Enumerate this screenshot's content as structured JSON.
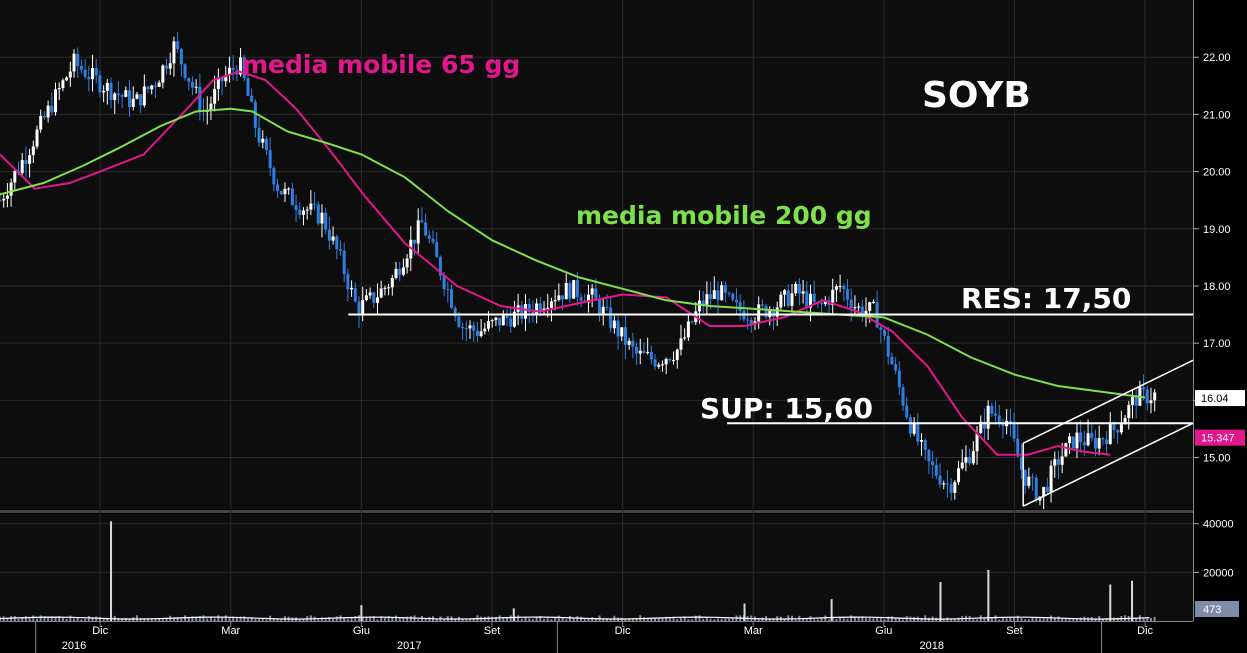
{
  "chart_data": {
    "type": "candlestick",
    "ticker": "SOYB",
    "colors": {
      "background": "#0d0d0d",
      "up_candle": "#ffffff",
      "down_candle": "#2f7fe0",
      "ma65": "#e2178c",
      "ma200": "#7ee04a",
      "level_line": "#ffffff",
      "channel": "#ffffff",
      "volume": "#d9d9d9",
      "axis_text": "#ffffff"
    },
    "price_axis": {
      "ylim": [
        14.1,
        23.0
      ],
      "ticks": [
        "15.00",
        "16.00",
        "17.00",
        "18.00",
        "19.00",
        "20.00",
        "21.00",
        "22.00"
      ],
      "tick_values": [
        15,
        16,
        17,
        18,
        19,
        20,
        21,
        22
      ]
    },
    "volume_axis": {
      "ylim": [
        0,
        44000
      ],
      "ticks": [
        "20000",
        "40000"
      ],
      "tick_values": [
        20000,
        40000
      ]
    },
    "x_axis": {
      "months": [
        {
          "label": "Dic",
          "x": 2
        },
        {
          "label": "Mar",
          "x": 5
        },
        {
          "label": "Giu",
          "x": 8
        },
        {
          "label": "Set",
          "x": 11
        },
        {
          "label": "Dic",
          "x": 14
        },
        {
          "label": "Mar",
          "x": 17
        },
        {
          "label": "Giu",
          "x": 20
        },
        {
          "label": "Set",
          "x": 23
        },
        {
          "label": "Dic",
          "x": 26
        }
      ],
      "years": [
        {
          "label": "2016",
          "x": 1.4
        },
        {
          "label": "2017",
          "x": 9.1
        },
        {
          "label": "2018",
          "x": 21.1
        }
      ],
      "xlim": [
        -0.3,
        27.1
      ],
      "x_unit": "months since Nov 2016"
    },
    "series": [
      {
        "name": "media mobile 65 gg",
        "x": [
          -0.3,
          0.5,
          1.3,
          2.0,
          3.0,
          4.0,
          4.6,
          5.2,
          5.8,
          6.5,
          7.3,
          8.1,
          9.0,
          10.2,
          11.2,
          12.1,
          13.0,
          14.0,
          15.0,
          16.0,
          16.8,
          17.7,
          18.6,
          19.4,
          20.2,
          21.0,
          21.8,
          22.6,
          23.3,
          24.0,
          24.6,
          25.2
        ],
        "values": [
          20.3,
          19.7,
          19.8,
          20.0,
          20.3,
          21.1,
          21.6,
          21.75,
          21.6,
          21.1,
          20.35,
          19.55,
          18.75,
          18.0,
          17.65,
          17.55,
          17.7,
          17.85,
          17.8,
          17.3,
          17.3,
          17.45,
          17.75,
          17.55,
          17.2,
          16.6,
          15.7,
          15.05,
          15.05,
          15.2,
          15.1,
          15.05
        ]
      },
      {
        "name": "media mobile 200 gg",
        "x": [
          -0.3,
          0.7,
          1.6,
          2.4,
          3.4,
          4.2,
          5.0,
          5.5,
          6.3,
          7.2,
          8.0,
          9.0,
          10.0,
          11.0,
          12.0,
          13.0,
          14.0,
          15.0,
          16.0,
          17.0,
          18.0,
          19.0,
          20.0,
          21.0,
          22.0,
          23.0,
          24.0,
          25.0,
          26.0
        ],
        "values": [
          19.6,
          19.8,
          20.1,
          20.4,
          20.8,
          21.05,
          21.1,
          21.05,
          20.7,
          20.5,
          20.3,
          19.9,
          19.3,
          18.8,
          18.45,
          18.15,
          17.95,
          17.75,
          17.65,
          17.6,
          17.55,
          17.5,
          17.45,
          17.15,
          16.75,
          16.45,
          16.25,
          16.15,
          16.05
        ]
      }
    ],
    "price_path": {
      "x": [
        -0.3,
        0.3,
        0.9,
        1.4,
        1.9,
        2.3,
        2.8,
        3.3,
        3.7,
        4.0,
        4.4,
        4.8,
        5.2,
        5.6,
        6.1,
        6.6,
        7.1,
        7.5,
        7.9,
        8.3,
        8.7,
        9.1,
        9.4,
        9.8,
        10.3,
        10.7,
        11.2,
        11.8,
        12.3,
        12.8,
        13.3,
        13.8,
        14.3,
        14.8,
        15.3,
        15.8,
        16.2,
        16.6,
        17.0,
        17.5,
        18.0,
        18.5,
        19.0,
        19.4,
        19.8,
        20.2,
        20.6,
        21.0,
        21.5,
        22.0,
        22.4,
        22.8,
        23.2,
        23.6,
        24.0,
        24.4,
        24.8,
        25.3,
        25.8,
        26.3
      ],
      "values": [
        19.5,
        20.3,
        21.2,
        21.9,
        21.6,
        21.4,
        21.2,
        21.6,
        22.2,
        21.7,
        21.0,
        21.6,
        21.9,
        20.7,
        19.7,
        19.4,
        19.2,
        18.5,
        17.6,
        17.8,
        18.1,
        18.7,
        19.1,
        18.3,
        17.3,
        17.2,
        17.4,
        17.55,
        17.8,
        17.95,
        17.8,
        17.3,
        16.8,
        16.7,
        16.9,
        17.7,
        17.9,
        17.6,
        17.5,
        17.65,
        17.9,
        17.6,
        18.0,
        17.6,
        17.55,
        16.6,
        15.6,
        14.9,
        14.5,
        15.1,
        15.8,
        15.7,
        14.7,
        14.3,
        14.95,
        15.35,
        15.25,
        15.5,
        16.05,
        16.1
      ]
    },
    "volume": {
      "baseline": 1000,
      "spikes": [
        {
          "x": 2.25,
          "value": 41000
        },
        {
          "x": 8.0,
          "value": 6500
        },
        {
          "x": 11.5,
          "value": 5200
        },
        {
          "x": 16.8,
          "value": 7200
        },
        {
          "x": 18.8,
          "value": 9000
        },
        {
          "x": 21.3,
          "value": 16000
        },
        {
          "x": 22.4,
          "value": 21000
        },
        {
          "x": 25.2,
          "value": 15000
        },
        {
          "x": 25.7,
          "value": 16500
        }
      ]
    },
    "horizontal_lines": [
      {
        "label": "RES: 17,50",
        "value": 17.5,
        "x_start": 7.7,
        "x_end": 27.1
      },
      {
        "label": "SUP: 15,60",
        "value": 15.6,
        "x_start": 16.4,
        "x_end": 27.1
      }
    ],
    "channel": {
      "lower": [
        [
          23.2,
          14.15
        ],
        [
          27.1,
          15.6
        ]
      ],
      "upper": [
        [
          23.2,
          15.25
        ],
        [
          27.1,
          16.7
        ]
      ]
    },
    "price_tags": [
      {
        "text": "16.04",
        "value": 16.04
      },
      {
        "text": "15.347",
        "value": 15.347
      }
    ],
    "volume_tag": {
      "text": "473",
      "value": 473
    },
    "annotations": {
      "ticker_label": "SOYB",
      "ma65_label": "media mobile 65 gg",
      "ma200_label": "media mobile 200 gg",
      "res_label": "RES: 17,50",
      "sup_label": "SUP: 15,60"
    }
  }
}
